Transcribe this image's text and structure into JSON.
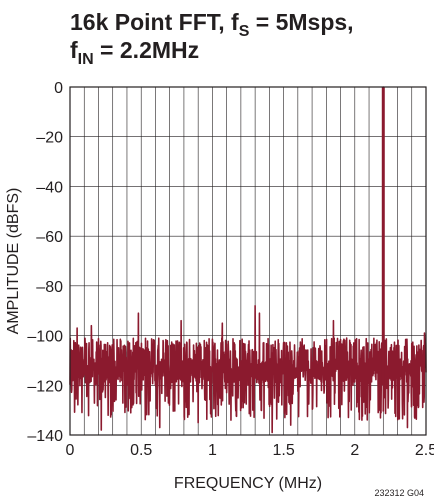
{
  "chart_data": {
    "type": "line",
    "title_line1": "16k Point FFT, f",
    "title_sub1": "S",
    "title_mid": " = 5Msps,",
    "title_line2": "f",
    "title_sub2": "IN",
    "title_end": " = 2.2MHz",
    "xlabel": "FREQUENCY (MHz)",
    "ylabel": "AMPLITUDE (dBFS)",
    "xlim": [
      0,
      2.5
    ],
    "ylim": [
      -140,
      0
    ],
    "x_ticks": [
      0,
      0.5,
      1,
      1.5,
      2,
      2.5
    ],
    "x_tick_labels": [
      "0",
      "0.5",
      "1",
      "1.5",
      "2",
      "2.5"
    ],
    "y_ticks": [
      0,
      -20,
      -40,
      -60,
      -80,
      -100,
      -120,
      -140
    ],
    "y_tick_labels": [
      "0",
      "–20",
      "–40",
      "–60",
      "–80",
      "–100",
      "–120",
      "–140"
    ],
    "grid": true,
    "noise_floor_band": [
      -128,
      -101
    ],
    "noise_floor_center": -114,
    "series": [
      {
        "color": "#8b1a2e",
        "fundamental": {
          "x": 2.2,
          "y": 0
        },
        "spurs": [
          {
            "x": 0.05,
            "y": -97
          },
          {
            "x": 0.15,
            "y": -96
          },
          {
            "x": 0.48,
            "y": -91
          },
          {
            "x": 0.78,
            "y": -94
          },
          {
            "x": 1.07,
            "y": -95
          },
          {
            "x": 1.3,
            "y": -88
          },
          {
            "x": 1.33,
            "y": -91
          },
          {
            "x": 1.85,
            "y": -94
          },
          {
            "x": 2.49,
            "y": -99
          }
        ],
        "dips": [
          {
            "x": 0.22,
            "y": -138
          },
          {
            "x": 0.63,
            "y": -137
          },
          {
            "x": 0.9,
            "y": -135
          },
          {
            "x": 1.13,
            "y": -134
          },
          {
            "x": 1.42,
            "y": -139
          },
          {
            "x": 1.55,
            "y": -136
          },
          {
            "x": 2.05,
            "y": -134
          },
          {
            "x": 2.37,
            "y": -137
          }
        ]
      }
    ]
  },
  "figure_code": "232312 G04"
}
